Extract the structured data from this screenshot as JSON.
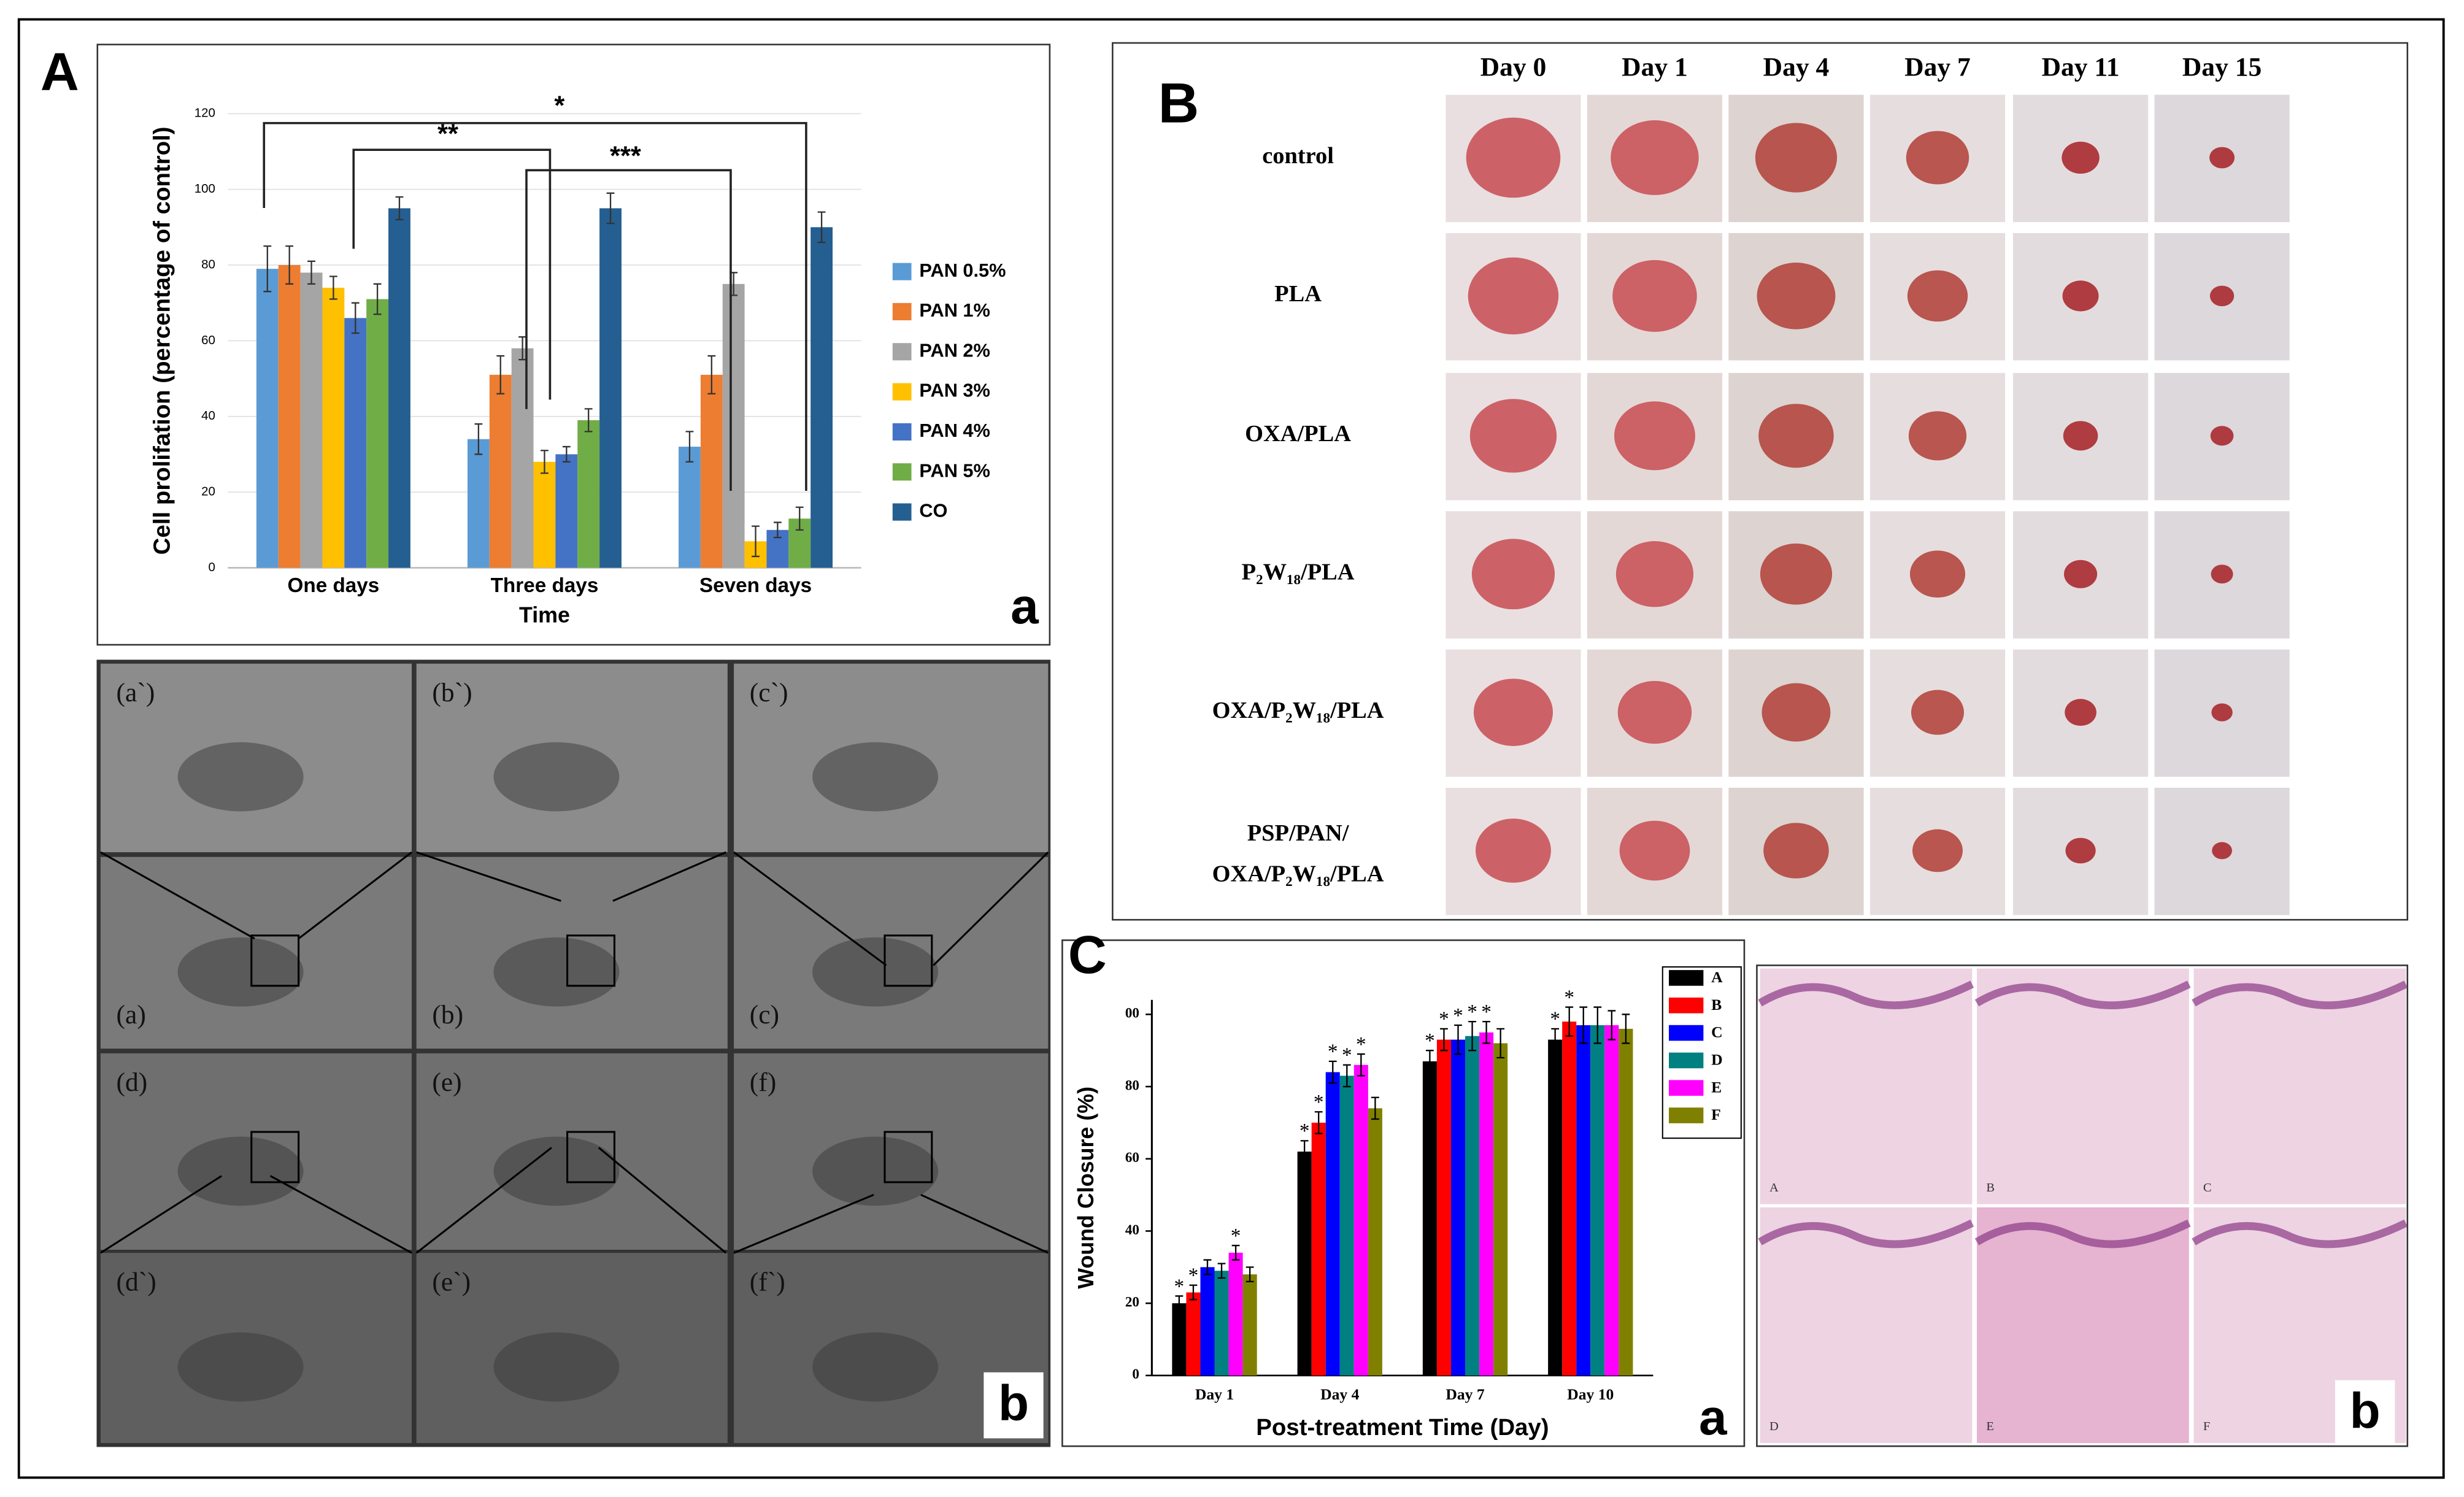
{
  "chart_data": [
    {
      "type": "bar",
      "panel": "A",
      "sublabel": "a",
      "y_label": "Cell prolifation  (percentage of control)",
      "x_label": "Time",
      "categories": [
        "One days",
        "Three days",
        "Seven days"
      ],
      "series": [
        {
          "name": "PAN 0.5%",
          "color": "#5b9bd5",
          "values": [
            79,
            34,
            32
          ],
          "errors": [
            6,
            4,
            4
          ]
        },
        {
          "name": "PAN 1%",
          "color": "#ed7d31",
          "values": [
            80,
            51,
            51
          ],
          "errors": [
            5,
            5,
            5
          ]
        },
        {
          "name": "PAN 2%",
          "color": "#a5a5a5",
          "values": [
            78,
            58,
            75
          ],
          "errors": [
            3,
            3,
            3
          ]
        },
        {
          "name": "PAN 3%",
          "color": "#ffc000",
          "values": [
            74,
            28,
            7
          ],
          "errors": [
            3,
            3,
            4
          ]
        },
        {
          "name": "PAN 4%",
          "color": "#4472c4",
          "values": [
            66,
            30,
            10
          ],
          "errors": [
            4,
            2,
            2
          ]
        },
        {
          "name": "PAN 5%",
          "color": "#70ad47",
          "values": [
            71,
            39,
            13
          ],
          "errors": [
            4,
            3,
            3
          ]
        },
        {
          "name": "CO",
          "color": "#255e91",
          "values": [
            95,
            95,
            90
          ],
          "errors": [
            3,
            4,
            4
          ]
        }
      ],
      "significance": [
        "*",
        "**",
        "***"
      ],
      "ylim": [
        0,
        120
      ],
      "yticks": [
        0,
        20,
        40,
        60,
        80,
        100,
        120
      ],
      "grid": true,
      "legend": "right"
    },
    {
      "type": "bar",
      "panel": "C",
      "sublabel": "a",
      "y_label": "Wound Closure (%)",
      "x_label": "Post-treatment Time (Day)",
      "categories": [
        "Day 1",
        "Day 4",
        "Day 7",
        "Day 10"
      ],
      "series": [
        {
          "name": "A",
          "color": "#000000",
          "values": [
            20,
            62,
            87,
            93
          ],
          "errors": [
            2,
            3,
            3,
            3
          ],
          "annotations": [
            "*",
            "*",
            "*",
            "*"
          ]
        },
        {
          "name": "B",
          "color": "#ff0000",
          "values": [
            23,
            70,
            93,
            98
          ],
          "errors": [
            2,
            3,
            3,
            4
          ],
          "annotations": [
            "*",
            "*",
            "*",
            "*"
          ]
        },
        {
          "name": "C",
          "color": "#0000ff",
          "values": [
            30,
            84,
            93,
            97
          ],
          "errors": [
            2,
            3,
            4,
            5
          ],
          "annotations": [
            null,
            "*",
            "*",
            null
          ]
        },
        {
          "name": "D",
          "color": "#008080",
          "values": [
            29,
            83,
            94,
            97
          ],
          "errors": [
            2,
            3,
            4,
            5
          ],
          "annotations": [
            null,
            "*",
            "*",
            null
          ]
        },
        {
          "name": "E",
          "color": "#ff00ff",
          "values": [
            34,
            86,
            95,
            97
          ],
          "errors": [
            2,
            3,
            3,
            4
          ],
          "annotations": [
            "*",
            "*",
            "*",
            null
          ]
        },
        {
          "name": "F",
          "color": "#808000",
          "values": [
            28,
            74,
            92,
            96
          ],
          "errors": [
            2,
            3,
            4,
            4
          ],
          "annotations": [
            null,
            null,
            null,
            null
          ]
        }
      ],
      "ylim": [
        0,
        104
      ],
      "yticks": [
        0,
        20,
        40,
        60,
        80,
        {
          "value": 100,
          "label": "00"
        }
      ],
      "grid": false,
      "legend": "upper right"
    }
  ],
  "sem": {
    "label": "b",
    "images": [
      "(a`)",
      "(b`)",
      "(c`)",
      "(a)",
      "(b)",
      "(c)",
      "(d)",
      "(e)",
      "(f)",
      "(d`)",
      "(e`)",
      "(f`)"
    ]
  },
  "wound_photos": {
    "label": "B",
    "days": [
      "Day 0",
      "Day 1",
      "Day 4",
      "Day 7",
      "Day 11",
      "Day 15"
    ],
    "groups": [
      "control",
      "PLA",
      "OXA/PLA",
      "P₂W₁₈/PLA",
      "OXA/P₂W₁₈/PLA",
      "PSP/PAN/ OXA/P₂W₁₈/PLA"
    ]
  },
  "histology": {
    "label": "b",
    "images": [
      "A",
      "B",
      "C",
      "D",
      "E",
      "F"
    ]
  }
}
